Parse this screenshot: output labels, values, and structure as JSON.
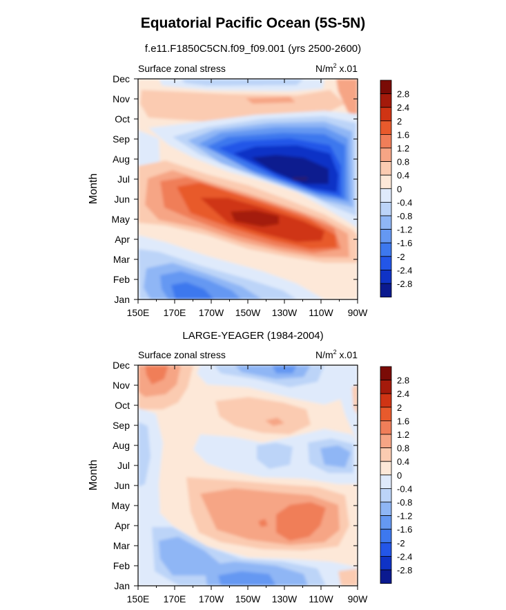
{
  "title": "Equatorial Pacific Ocean (5S-5N)",
  "colors": [
    "#0b1a8f",
    "#0f33c6",
    "#2356e8",
    "#3d78ee",
    "#6598f2",
    "#8fb6f5",
    "#bcd4f8",
    "#dfeafb",
    "#fde8d8",
    "#fbcbb1",
    "#f6a585",
    "#f07e59",
    "#e85a2c",
    "#cf3414",
    "#a41a0b",
    "#7a0b06"
  ],
  "chart_data": [
    {
      "type": "heatmap",
      "subtitle": "f.e11.F1850C5CN.f09_f09.001 (yrs 2500-2600)",
      "left_label": "Surface zonal stress",
      "units_label": "N/m",
      "units_sup": "2",
      "units_suffix": " x.01",
      "ylabel": "Month",
      "x_ticks": [
        "150E",
        "170E",
        "170W",
        "150W",
        "130W",
        "110W",
        "90W"
      ],
      "y_ticks": [
        "Jan",
        "Feb",
        "Mar",
        "Apr",
        "May",
        "Jun",
        "Jul",
        "Aug",
        "Sep",
        "Oct",
        "Nov",
        "Dec"
      ],
      "contour_levels": [
        "-2.8",
        "-2.4",
        "-2",
        "-1.6",
        "-1.2",
        "-0.8",
        "-0.4",
        "0",
        "0.4",
        "0.8",
        "1.2",
        "1.6",
        "2",
        "2.4",
        "2.8"
      ],
      "features": [
        {
          "name": "negative-core",
          "lon": "130W",
          "month": "Jul",
          "value": -3.0
        },
        {
          "name": "positive-core",
          "lon": "140W",
          "month": "May",
          "value": 2.6
        },
        {
          "name": "jan-negative",
          "lon": "160W",
          "month": "Jan",
          "value": -1.4
        }
      ]
    },
    {
      "type": "heatmap",
      "subtitle": "LARGE-YEAGER (1984-2004)",
      "left_label": "Surface zonal stress",
      "units_label": "N/m",
      "units_sup": "2",
      "units_suffix": " x.01",
      "ylabel": "Month",
      "x_ticks": [
        "150E",
        "170E",
        "170W",
        "150W",
        "130W",
        "110W",
        "90W"
      ],
      "y_ticks": [
        "Jan",
        "Feb",
        "Mar",
        "Apr",
        "May",
        "Jun",
        "Jul",
        "Aug",
        "Sep",
        "Oct",
        "Nov",
        "Dec"
      ],
      "contour_levels": [
        "-2.8",
        "-2.4",
        "-2",
        "-1.6",
        "-1.2",
        "-0.8",
        "-0.4",
        "0",
        "0.4",
        "0.8",
        "1.2",
        "1.6",
        "2",
        "2.4",
        "2.8"
      ],
      "features": [
        {
          "name": "apr-positive",
          "lon": "120W",
          "month": "Apr",
          "value": 1.4
        },
        {
          "name": "dec-positive",
          "lon": "150E",
          "month": "Dec",
          "value": 1.8
        },
        {
          "name": "feb-negative",
          "lon": "150W",
          "month": "Feb",
          "value": -1.0
        }
      ]
    }
  ]
}
